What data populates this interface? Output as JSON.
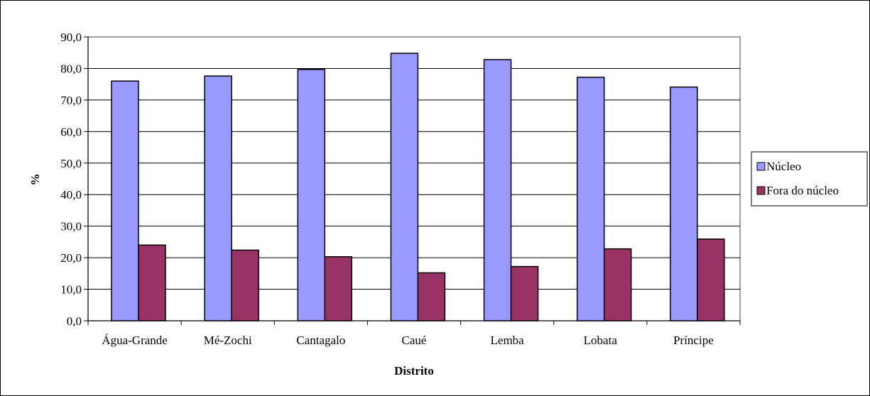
{
  "chart_data": {
    "type": "bar",
    "title": "",
    "xlabel": "Distrito",
    "ylabel": "%",
    "categories": [
      "Água-Grande",
      "Mé-Zochi",
      "Cantagalo",
      "Caué",
      "Lemba",
      "Lobata",
      "Príncipe"
    ],
    "series": [
      {
        "name": "Núcleo",
        "values": [
          76.0,
          77.6,
          79.7,
          84.8,
          82.8,
          77.2,
          74.1
        ]
      },
      {
        "name": "Fora do núcleo",
        "values": [
          24.0,
          22.4,
          20.3,
          15.2,
          17.2,
          22.8,
          25.9
        ]
      }
    ],
    "ylim": [
      0,
      90
    ],
    "yticks": [
      0,
      10,
      20,
      30,
      40,
      50,
      60,
      70,
      80,
      90
    ],
    "ytick_labels": [
      "0,0",
      "10,0",
      "20,0",
      "30,0",
      "40,0",
      "50,0",
      "60,0",
      "70,0",
      "80,0",
      "90,0"
    ],
    "grid": true,
    "legend_position": "right",
    "colors": {
      "series": [
        "#9999ff",
        "#993366"
      ],
      "grid": "#000000",
      "axis": "#808080"
    }
  }
}
